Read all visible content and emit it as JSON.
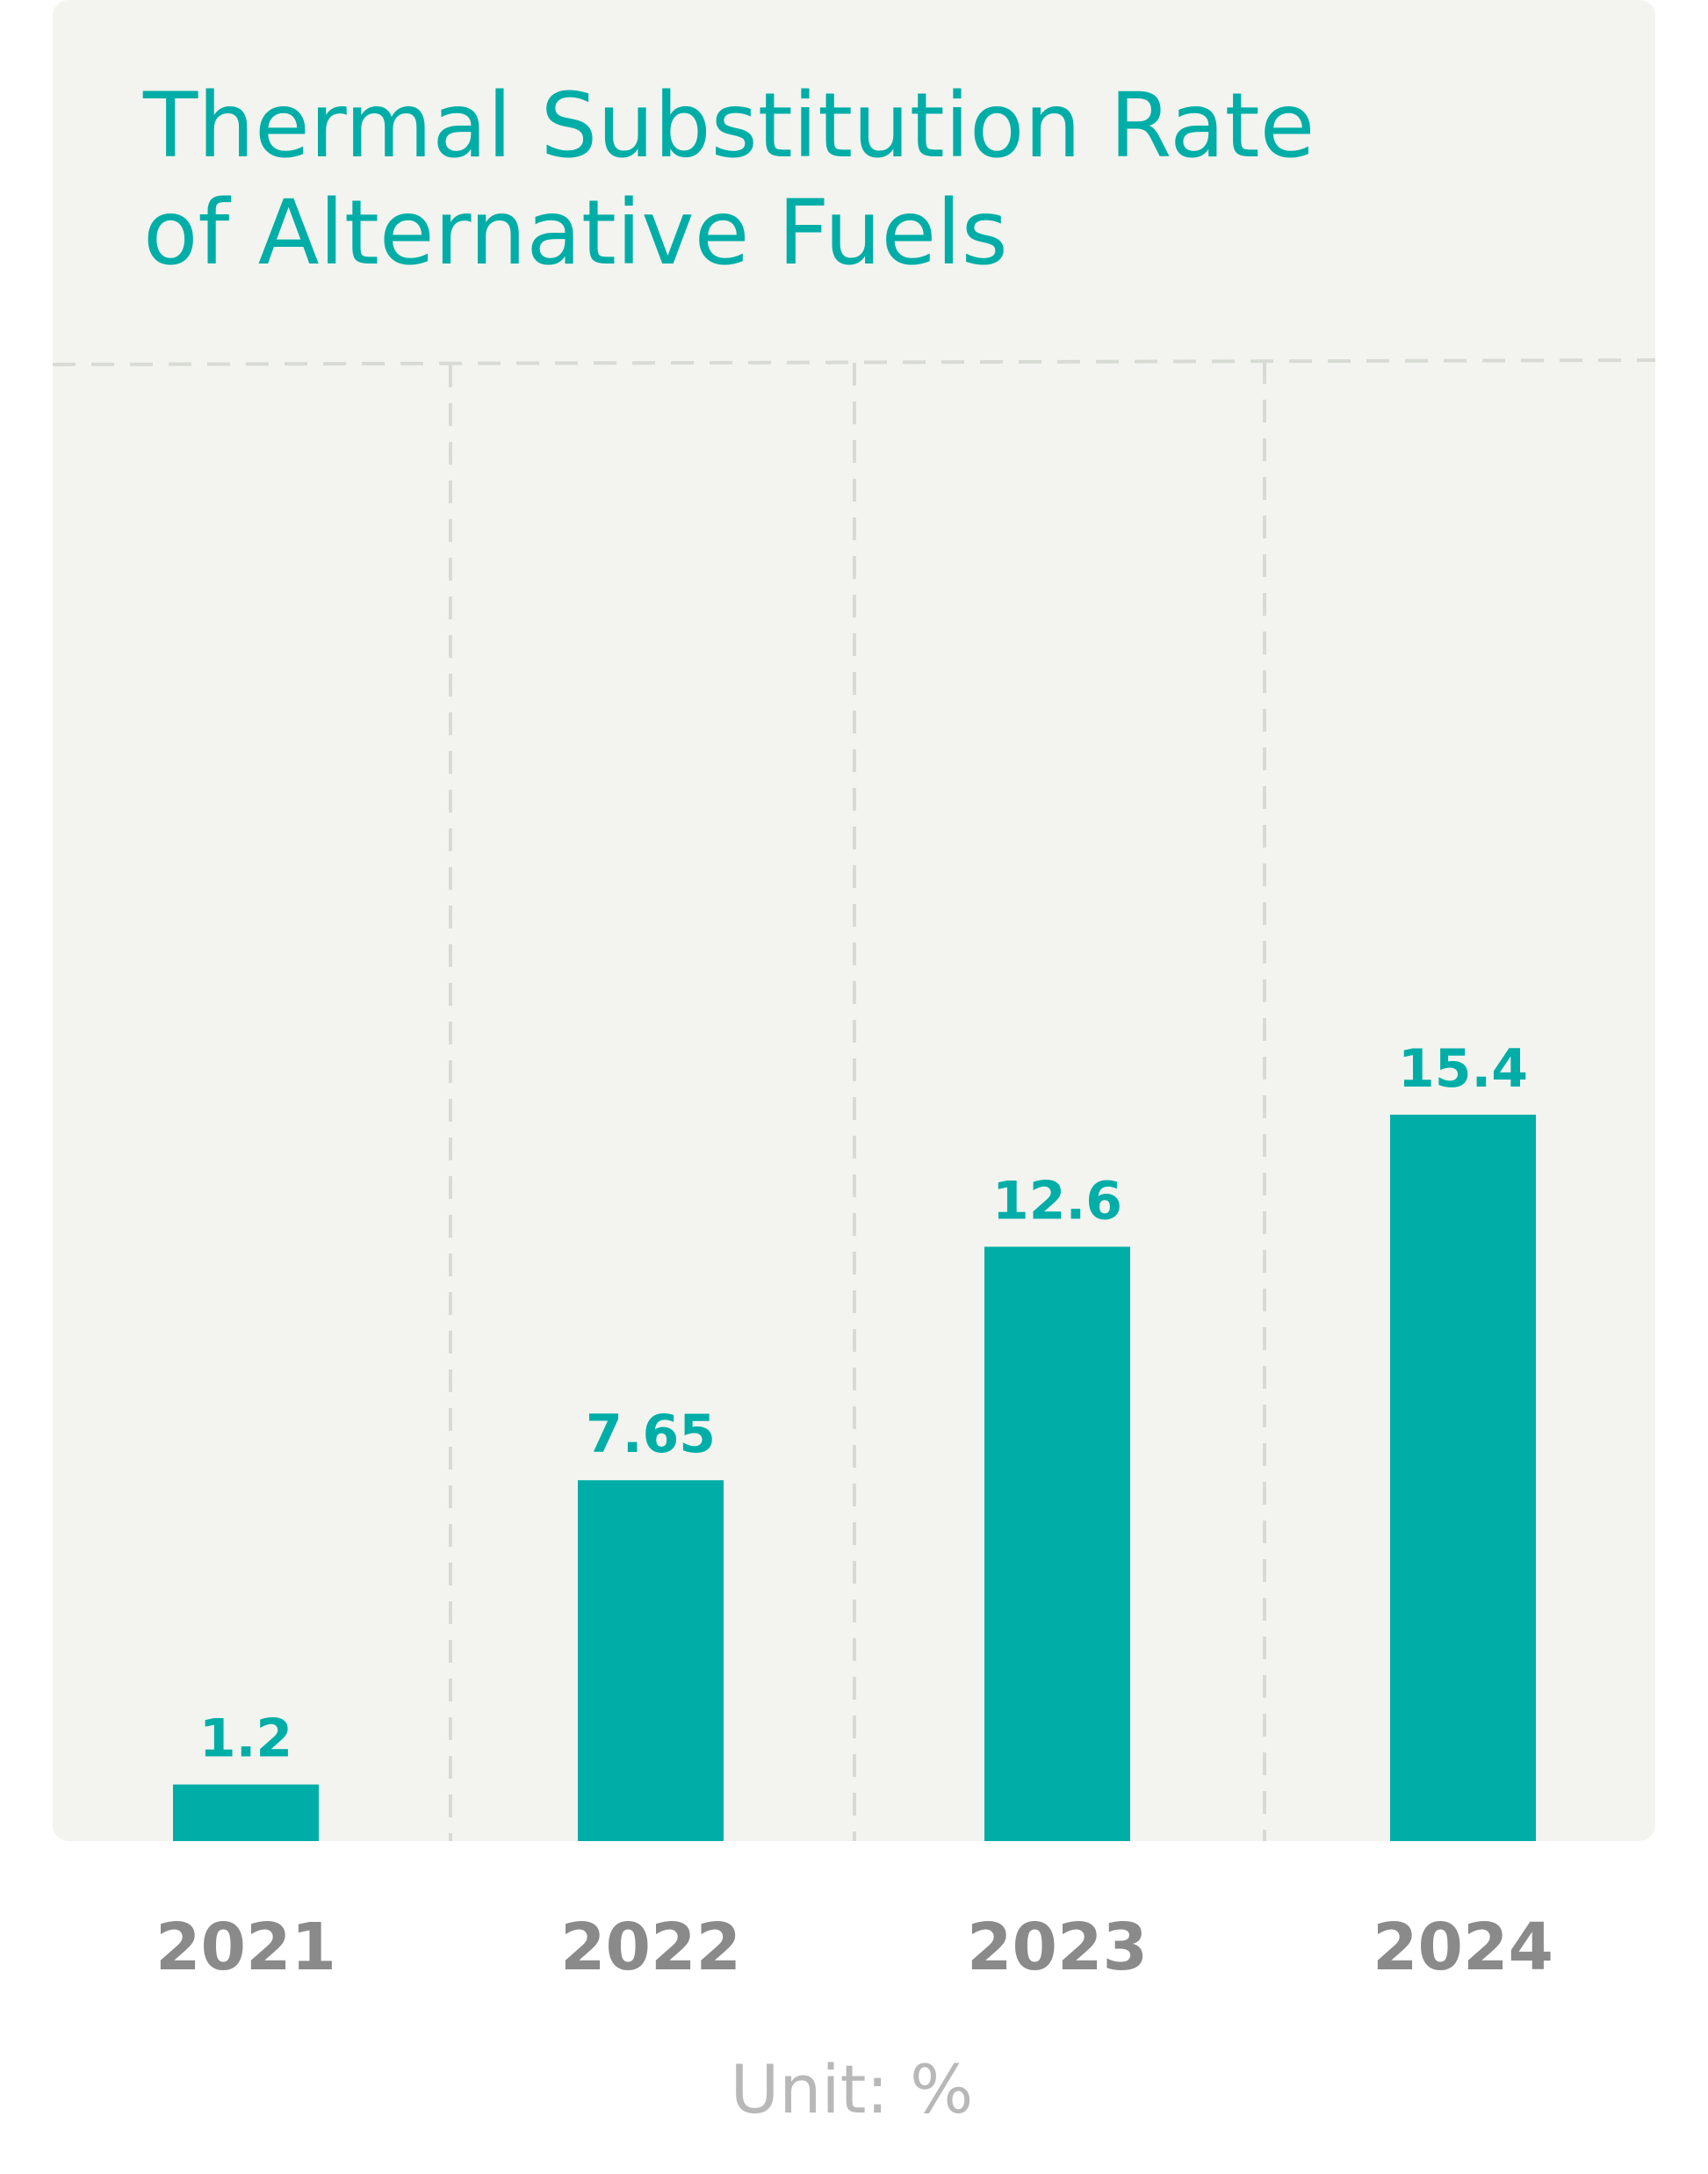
{
  "chart_data": {
    "type": "bar",
    "title_lines": [
      "Thermal Substitution Rate",
      "of Alternative Fuels"
    ],
    "categories": [
      "2021",
      "2022",
      "2023",
      "2024"
    ],
    "values": [
      1.2,
      7.65,
      12.6,
      15.4
    ],
    "value_labels": [
      "1.2",
      "7.65",
      "12.6",
      "15.4"
    ],
    "unit_label": "Unit: %",
    "ylim": [
      0,
      23
    ],
    "grid": true,
    "colors": {
      "bar": "#00aea7",
      "title": "#00aea7",
      "value_label": "#00aea7",
      "tick_label": "#8a8a8a",
      "unit_label": "#b8b8b8",
      "background": "#f3f4ef",
      "grid": "#d8dad4"
    }
  }
}
